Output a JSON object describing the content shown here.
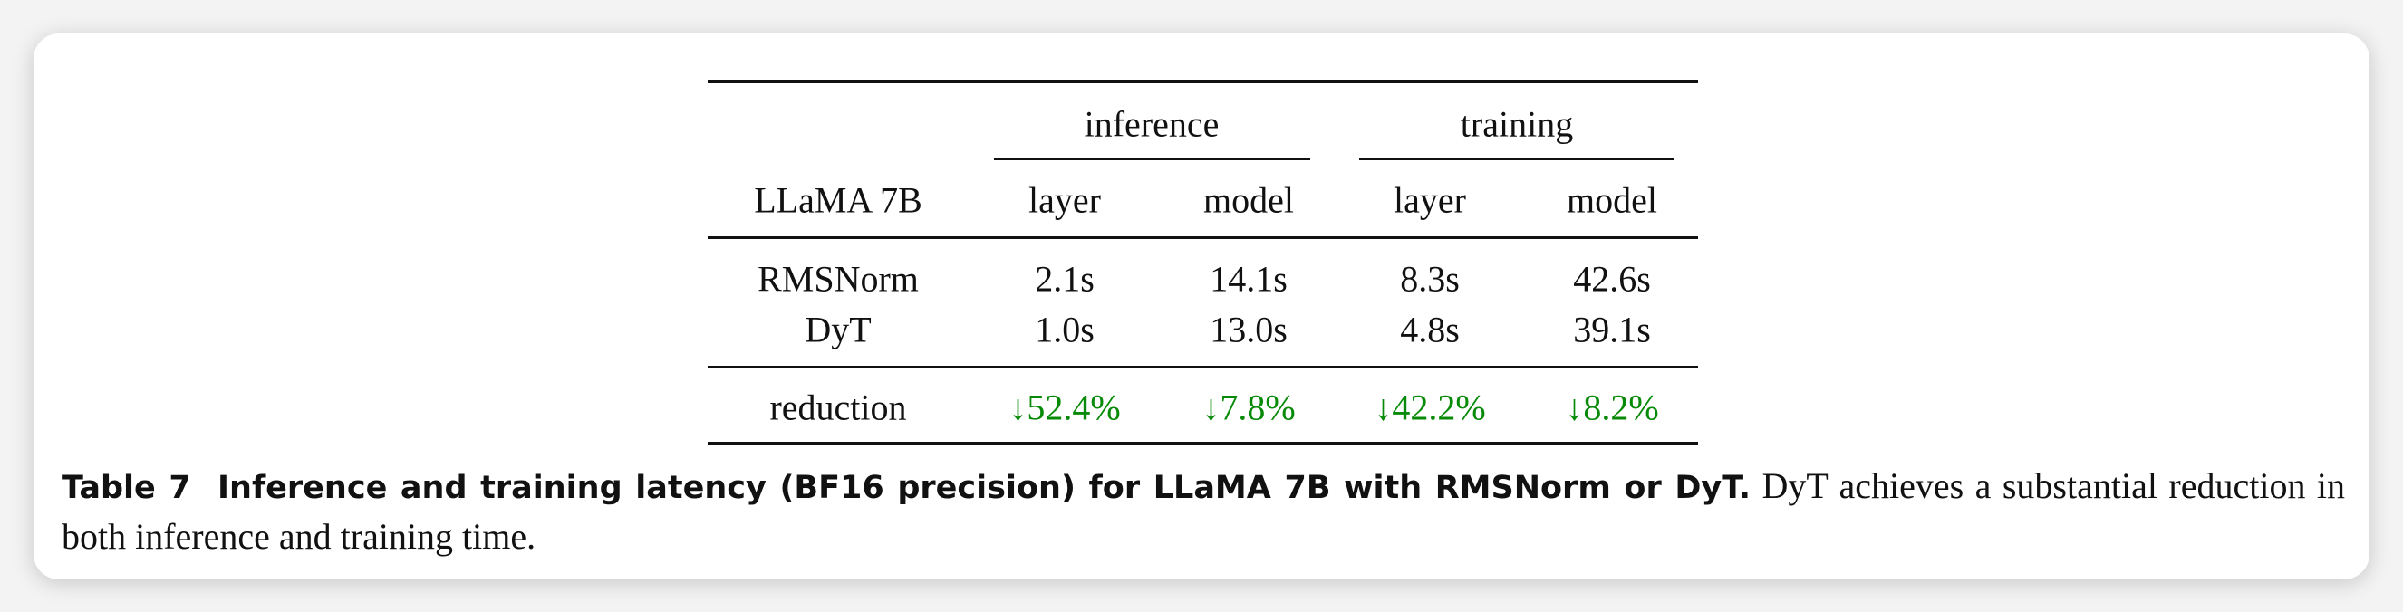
{
  "table": {
    "group_headers": [
      "inference",
      "training"
    ],
    "row_header": "LLaMA 7B",
    "sub_headers": [
      "layer",
      "model",
      "layer",
      "model"
    ],
    "rows": [
      {
        "label": "RMSNorm",
        "values": [
          "2.1s",
          "14.1s",
          "8.3s",
          "42.6s"
        ]
      },
      {
        "label": "DyT",
        "values": [
          "1.0s",
          "13.0s",
          "4.8s",
          "39.1s"
        ]
      }
    ],
    "reduction": {
      "label": "reduction",
      "values": [
        "↓52.4%",
        "↓7.8%",
        "↓42.2%",
        "↓8.2%"
      ],
      "color": "#078a07"
    }
  },
  "caption": {
    "label": "Table 7",
    "title": "Inference and training latency (BF16 precision) for LLaMA 7B with RMSNorm or DyT.",
    "text": "DyT achieves a substantial reduction in both inference and training time."
  }
}
